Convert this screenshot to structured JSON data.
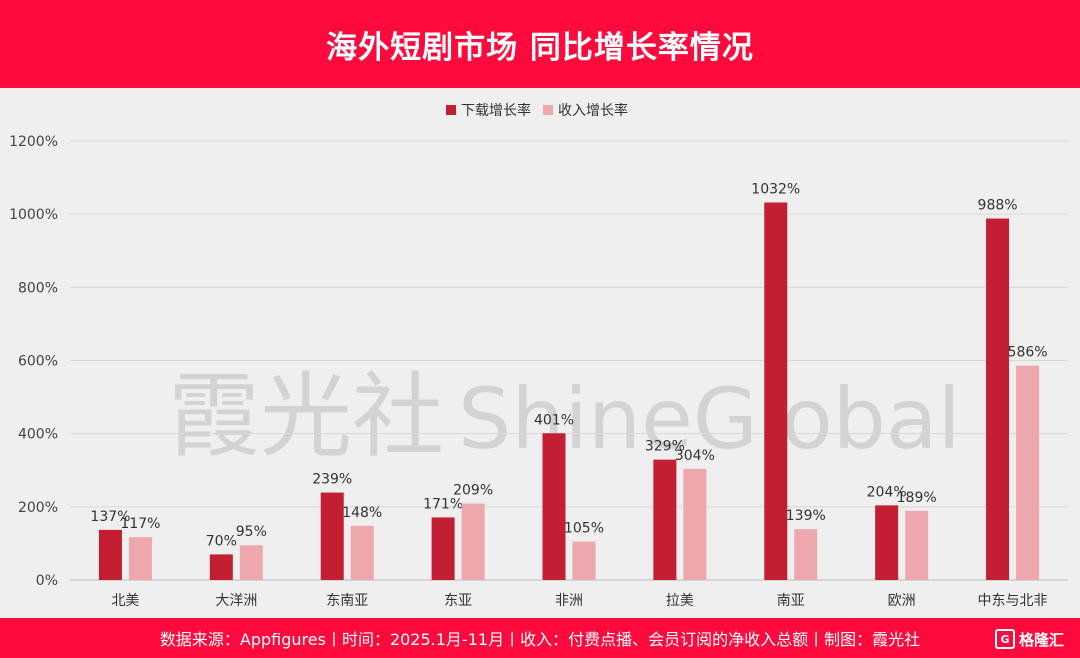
{
  "header": {
    "title": "海外短剧市场 同比增长率情况"
  },
  "footer": {
    "source_text": "数据来源：Appfigures丨时间：2025.1月-11月丨收入：付费点播、会员订阅的净收入总额丨制图：霞光社",
    "logo_text": "格隆汇",
    "logo_mark": "G"
  },
  "watermark": {
    "text_cn": "霞光社",
    "text_en": "ShineGlobal"
  },
  "colors": {
    "download": "#c41e32",
    "revenue": "#eea7ac",
    "header_bg": "#ff0a3c",
    "grid": "#d6d6d6"
  },
  "chart_data": {
    "type": "bar",
    "title": "",
    "xlabel": "",
    "ylabel": "",
    "ylim": [
      0,
      1200
    ],
    "yticks": [
      0,
      200,
      400,
      600,
      800,
      1000,
      1200
    ],
    "y_tick_suffix": "%",
    "grid": true,
    "legend_position": "top-center",
    "categories": [
      "北美",
      "大洋洲",
      "东南亚",
      "东亚",
      "非洲",
      "拉美",
      "南亚",
      "欧洲",
      "中东与北非"
    ],
    "series": [
      {
        "name": "下载增长率",
        "color": "#c41e32",
        "values": [
          137,
          70,
          239,
          171,
          401,
          329,
          1032,
          204,
          988
        ],
        "labels": [
          "137%",
          "70%",
          "239%",
          "171%",
          "401%",
          "329%",
          "1032%",
          "204%",
          "988%"
        ]
      },
      {
        "name": "收入增长率",
        "color": "#eea7ac",
        "values": [
          117,
          95,
          148,
          209,
          105,
          304,
          139,
          189,
          586
        ],
        "labels": [
          "117%",
          "95%",
          "148%",
          "209%",
          "105%",
          "304%",
          "139%",
          "189%",
          "586%"
        ]
      }
    ]
  }
}
